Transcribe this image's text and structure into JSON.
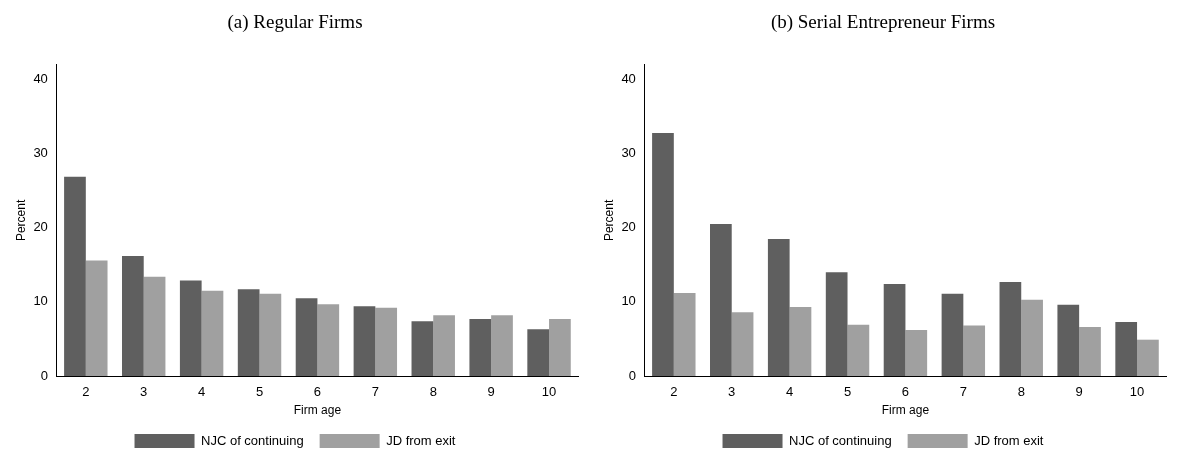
{
  "chart_data": [
    {
      "type": "bar",
      "title": "(a) Regular Firms",
      "xlabel": "Firm age",
      "ylabel": "Percent",
      "categories": [
        "2",
        "3",
        "4",
        "5",
        "6",
        "7",
        "8",
        "9",
        "10"
      ],
      "series": [
        {
          "name": "NJC of continuing",
          "color": "#5f5f5f",
          "values": [
            26.9,
            16.2,
            12.9,
            11.7,
            10.5,
            9.4,
            7.4,
            7.7,
            6.3
          ]
        },
        {
          "name": "JD from exit",
          "color": "#a0a0a0",
          "values": [
            15.6,
            13.4,
            11.5,
            11.1,
            9.7,
            9.2,
            8.2,
            8.2,
            7.7
          ]
        }
      ],
      "ylim": [
        0,
        42
      ],
      "yticks": [
        0,
        10,
        20,
        30,
        40
      ],
      "grid": false,
      "legend": "bottom"
    },
    {
      "type": "bar",
      "title": "(b) Serial Entrepreneur Firms",
      "xlabel": "Firm age",
      "ylabel": "Percent",
      "categories": [
        "2",
        "3",
        "4",
        "5",
        "6",
        "7",
        "8",
        "9",
        "10"
      ],
      "series": [
        {
          "name": "NJC of continuing",
          "color": "#5f5f5f",
          "values": [
            32.8,
            20.5,
            18.5,
            14.0,
            12.4,
            11.1,
            12.7,
            9.6,
            7.3
          ]
        },
        {
          "name": "JD from exit",
          "color": "#a0a0a0",
          "values": [
            11.2,
            8.6,
            9.3,
            6.9,
            6.2,
            6.8,
            10.3,
            6.6,
            4.9
          ]
        }
      ],
      "ylim": [
        0,
        42
      ],
      "yticks": [
        0,
        10,
        20,
        30,
        40
      ],
      "grid": false,
      "legend": "bottom"
    }
  ]
}
